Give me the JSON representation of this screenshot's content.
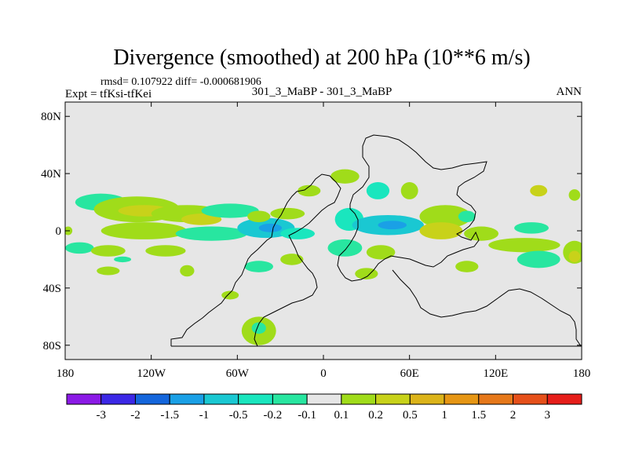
{
  "chart_data": {
    "type": "heatmap",
    "title": "Divergence (smoothed) at 200 hPa (10**6 m/s)",
    "stats": "rmsd= 0.107922 diff= -0.000681906",
    "experiment": "Expt = tfKsi-tfKei",
    "subtitle": "301_3_MaBP - 301_3_MaBP",
    "season": "ANN",
    "x_range": [
      -180,
      180
    ],
    "y_range": [
      -90,
      90
    ],
    "x_ticks": [
      {
        "value": -180,
        "label": "180"
      },
      {
        "value": -120,
        "label": "120W"
      },
      {
        "value": -60,
        "label": "60W"
      },
      {
        "value": 0,
        "label": "0"
      },
      {
        "value": 60,
        "label": "60E"
      },
      {
        "value": 120,
        "label": "120E"
      },
      {
        "value": 180,
        "label": "180"
      }
    ],
    "y_ticks": [
      {
        "value": 80,
        "label": "80N"
      },
      {
        "value": 40,
        "label": "40N"
      },
      {
        "value": 0,
        "label": "0"
      },
      {
        "value": -40,
        "label": "40S"
      },
      {
        "value": -80,
        "label": "80S"
      }
    ],
    "colorbar": {
      "colors": [
        "#8b1ae6",
        "#3c28e6",
        "#1466dc",
        "#1aa0e6",
        "#1ac8d2",
        "#1ae6be",
        "#28e6a0",
        "#e6e6e6",
        "#a0dc1a",
        "#c8d21a",
        "#dcb41a",
        "#e69614",
        "#e6781a",
        "#e6501a",
        "#e61e1a"
      ],
      "labels": [
        "-3",
        "-2",
        "-1.5",
        "-1",
        "-0.5",
        "-0.2",
        "-0.1",
        "0.1",
        "0.2",
        "0.5",
        "1",
        "1.5",
        "2",
        "3"
      ]
    },
    "anomalies": [
      {
        "lon": -155,
        "lat": 20,
        "rlon": 18,
        "rlat": 6,
        "color": "#28e6a0"
      },
      {
        "lon": -130,
        "lat": 15,
        "rlon": 30,
        "rlat": 9,
        "color": "#a0dc1a"
      },
      {
        "lon": -125,
        "lat": 14,
        "rlon": 18,
        "rlat": 4,
        "color": "#c8d21a"
      },
      {
        "lon": -170,
        "lat": -12,
        "rlon": 10,
        "rlat": 4,
        "color": "#28e6a0"
      },
      {
        "lon": -150,
        "lat": -14,
        "rlon": 12,
        "rlat": 4,
        "color": "#a0dc1a"
      },
      {
        "lon": -110,
        "lat": -14,
        "rlon": 14,
        "rlat": 4,
        "color": "#a0dc1a"
      },
      {
        "lon": -125,
        "lat": 0,
        "rlon": 30,
        "rlat": 6,
        "color": "#a0dc1a"
      },
      {
        "lon": -95,
        "lat": 12,
        "rlon": 25,
        "rlat": 6,
        "color": "#a0dc1a"
      },
      {
        "lon": -85,
        "lat": 8,
        "rlon": 14,
        "rlat": 4,
        "color": "#c8d21a"
      },
      {
        "lon": -78,
        "lat": -2,
        "rlon": 25,
        "rlat": 5,
        "color": "#28e6a0"
      },
      {
        "lon": -65,
        "lat": 14,
        "rlon": 20,
        "rlat": 5,
        "color": "#28e6a0"
      },
      {
        "lon": -40,
        "lat": 2,
        "rlon": 20,
        "rlat": 7,
        "color": "#1ac8d2"
      },
      {
        "lon": -37,
        "lat": 2,
        "rlon": 8,
        "rlat": 3,
        "color": "#1aa0e6"
      },
      {
        "lon": -45,
        "lat": 10,
        "rlon": 8,
        "rlat": 4,
        "color": "#a0dc1a"
      },
      {
        "lon": -25,
        "lat": 12,
        "rlon": 12,
        "rlat": 4,
        "color": "#a0dc1a"
      },
      {
        "lon": -18,
        "lat": -2,
        "rlon": 12,
        "rlat": 4,
        "color": "#1ae6be"
      },
      {
        "lon": -10,
        "lat": 28,
        "rlon": 8,
        "rlat": 4,
        "color": "#a0dc1a"
      },
      {
        "lon": -150,
        "lat": -28,
        "rlon": 8,
        "rlat": 3,
        "color": "#a0dc1a"
      },
      {
        "lon": -95,
        "lat": -28,
        "rlon": 5,
        "rlat": 4,
        "color": "#a0dc1a"
      },
      {
        "lon": -45,
        "lat": -25,
        "rlon": 10,
        "rlat": 4,
        "color": "#28e6a0"
      },
      {
        "lon": -22,
        "lat": -20,
        "rlon": 8,
        "rlat": 4,
        "color": "#a0dc1a"
      },
      {
        "lon": -65,
        "lat": -45,
        "rlon": 6,
        "rlat": 3,
        "color": "#a0dc1a"
      },
      {
        "lon": -45,
        "lat": -70,
        "rlon": 12,
        "rlat": 10,
        "color": "#a0dc1a"
      },
      {
        "lon": -45,
        "lat": -68,
        "rlon": 5,
        "rlat": 4,
        "color": "#28e6a0"
      },
      {
        "lon": 15,
        "lat": 38,
        "rlon": 10,
        "rlat": 5,
        "color": "#a0dc1a"
      },
      {
        "lon": 38,
        "lat": 28,
        "rlon": 8,
        "rlat": 6,
        "color": "#1ae6be"
      },
      {
        "lon": 60,
        "lat": 28,
        "rlon": 6,
        "rlat": 6,
        "color": "#a0dc1a"
      },
      {
        "lon": 18,
        "lat": 8,
        "rlon": 10,
        "rlat": 8,
        "color": "#1ae6be"
      },
      {
        "lon": 45,
        "lat": 4,
        "rlon": 25,
        "rlat": 7,
        "color": "#1ac8d2"
      },
      {
        "lon": 48,
        "lat": 4,
        "rlon": 10,
        "rlat": 3,
        "color": "#1aa0e6"
      },
      {
        "lon": 15,
        "lat": -12,
        "rlon": 12,
        "rlat": 6,
        "color": "#28e6a0"
      },
      {
        "lon": 40,
        "lat": -15,
        "rlon": 10,
        "rlat": 5,
        "color": "#a0dc1a"
      },
      {
        "lon": 85,
        "lat": 10,
        "rlon": 18,
        "rlat": 8,
        "color": "#a0dc1a"
      },
      {
        "lon": 82,
        "lat": 0,
        "rlon": 15,
        "rlat": 6,
        "color": "#c8d21a"
      },
      {
        "lon": 100,
        "lat": 10,
        "rlon": 6,
        "rlat": 4,
        "color": "#28e6a0"
      },
      {
        "lon": 110,
        "lat": -2,
        "rlon": 12,
        "rlat": 5,
        "color": "#a0dc1a"
      },
      {
        "lon": 140,
        "lat": -10,
        "rlon": 25,
        "rlat": 5,
        "color": "#a0dc1a"
      },
      {
        "lon": 145,
        "lat": 2,
        "rlon": 12,
        "rlat": 4,
        "color": "#28e6a0"
      },
      {
        "lon": 150,
        "lat": -20,
        "rlon": 15,
        "rlat": 6,
        "color": "#28e6a0"
      },
      {
        "lon": 175,
        "lat": -15,
        "rlon": 8,
        "rlat": 8,
        "color": "#a0dc1a"
      },
      {
        "lon": 175,
        "lat": -18,
        "rlon": 4,
        "rlat": 4,
        "color": "#c8d21a"
      },
      {
        "lon": 100,
        "lat": -25,
        "rlon": 8,
        "rlat": 4,
        "color": "#a0dc1a"
      },
      {
        "lon": 150,
        "lat": 28,
        "rlon": 6,
        "rlat": 4,
        "color": "#c8d21a"
      },
      {
        "lon": 175,
        "lat": 25,
        "rlon": 4,
        "rlat": 4,
        "color": "#a0dc1a"
      },
      {
        "lon": 30,
        "lat": -30,
        "rlon": 8,
        "rlat": 4,
        "color": "#a0dc1a"
      },
      {
        "lon": -178,
        "lat": 0,
        "rlon": 3,
        "rlat": 3,
        "color": "#a0dc1a"
      },
      {
        "lon": -140,
        "lat": -20,
        "rlon": 6,
        "rlat": 2,
        "color": "#28e6a0"
      }
    ]
  }
}
